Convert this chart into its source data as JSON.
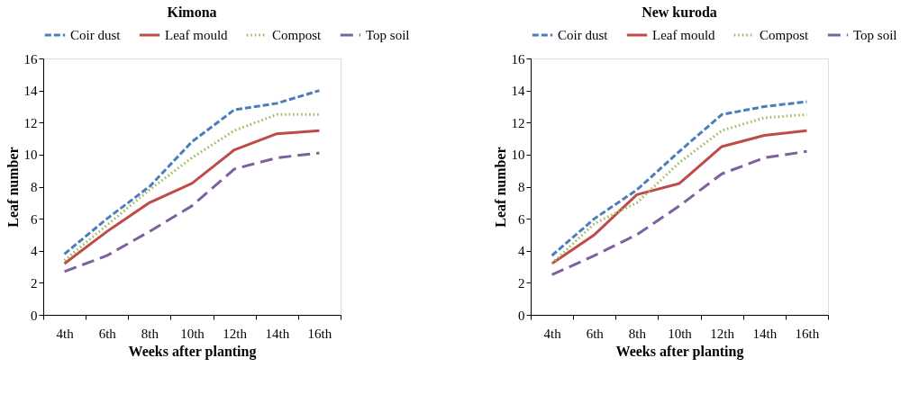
{
  "chart_data": [
    {
      "type": "line",
      "title": "Kimona",
      "xlabel": "Weeks after planting",
      "ylabel": "Leaf number",
      "categories": [
        "4th",
        "6th",
        "8th",
        "10th",
        "12th",
        "14th",
        "16th"
      ],
      "ylim": [
        0,
        16
      ],
      "yticks": [
        0,
        2,
        4,
        6,
        8,
        10,
        12,
        14,
        16
      ],
      "grid": false,
      "legend": "top",
      "marker": "none",
      "series": [
        {
          "name": "Coir dust",
          "color": "#4a7ebb",
          "line_style": "dashed",
          "values": [
            3.8,
            6.0,
            8.0,
            10.8,
            12.8,
            13.2,
            14.0
          ]
        },
        {
          "name": "Leaf mould",
          "color": "#be4b48",
          "line_style": "solid",
          "values": [
            3.2,
            5.2,
            7.0,
            8.2,
            10.3,
            11.3,
            11.5
          ]
        },
        {
          "name": "Compost",
          "color": "#98b954",
          "line_style": "dotted",
          "values": [
            3.4,
            5.6,
            7.8,
            9.8,
            11.5,
            12.5,
            12.5
          ]
        },
        {
          "name": "Top soil",
          "color": "#7d60a0",
          "line_style": "longdash",
          "values": [
            2.7,
            3.7,
            5.2,
            6.8,
            9.1,
            9.8,
            10.1
          ]
        }
      ]
    },
    {
      "type": "line",
      "title": "New kuroda",
      "xlabel": "Weeks after planting",
      "ylabel": "Leaf number",
      "categories": [
        "4th",
        "6th",
        "8th",
        "10th",
        "12th",
        "14th",
        "16th"
      ],
      "ylim": [
        0,
        16
      ],
      "yticks": [
        0,
        2,
        4,
        6,
        8,
        10,
        12,
        14,
        16
      ],
      "grid": false,
      "legend": "top",
      "marker": "none",
      "series": [
        {
          "name": "Coir dust",
          "color": "#4a7ebb",
          "line_style": "dashed",
          "values": [
            3.7,
            6.0,
            7.8,
            10.2,
            12.5,
            13.0,
            13.3
          ]
        },
        {
          "name": "Leaf mould",
          "color": "#be4b48",
          "line_style": "solid",
          "values": [
            3.2,
            5.0,
            7.5,
            8.2,
            10.5,
            11.2,
            11.5
          ]
        },
        {
          "name": "Compost",
          "color": "#98b954",
          "line_style": "dotted",
          "values": [
            3.2,
            5.7,
            7.0,
            9.5,
            11.5,
            12.3,
            12.5
          ]
        },
        {
          "name": "Top soil",
          "color": "#7d60a0",
          "line_style": "longdash",
          "values": [
            2.5,
            3.7,
            5.0,
            6.8,
            8.8,
            9.8,
            10.2
          ]
        }
      ]
    }
  ]
}
